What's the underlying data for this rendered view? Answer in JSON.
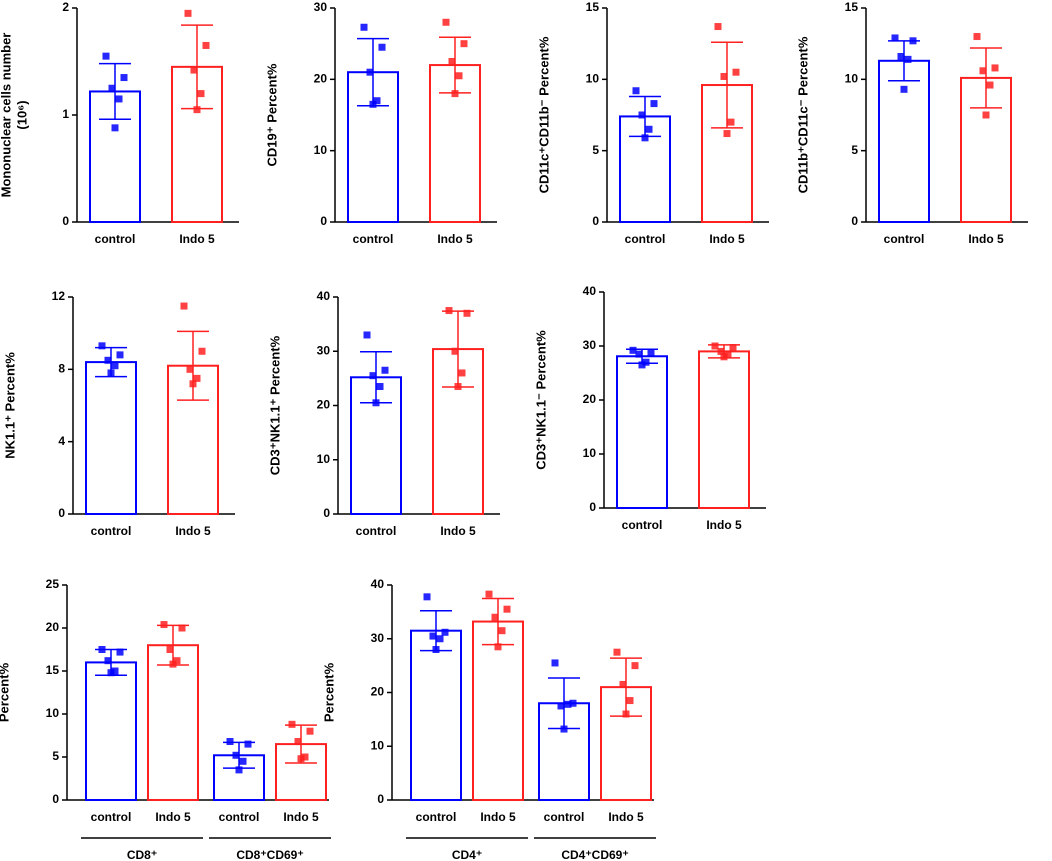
{
  "chart_data": [
    {
      "type": "bar",
      "ylabel": [
        "Mononuclear cells number",
        "(10⁶)"
      ],
      "categories": [
        "control",
        "Indo 5"
      ],
      "colors": [
        "#0000ff",
        "#ff2020"
      ],
      "values": [
        1.22,
        1.45
      ],
      "errors": [
        0.26,
        0.39
      ],
      "points": [
        [
          1.55,
          1.35,
          1.25,
          1.15,
          0.88
        ],
        [
          1.95,
          1.65,
          1.42,
          1.2,
          1.05
        ]
      ],
      "ylim": [
        0,
        2
      ],
      "yticks": [
        0,
        1,
        2
      ]
    },
    {
      "type": "bar",
      "ylabel": "CD19⁺ Percent%",
      "categories": [
        "control",
        "Indo 5"
      ],
      "colors": [
        "#0000ff",
        "#ff2020"
      ],
      "values": [
        21,
        22
      ],
      "errors": [
        4.7,
        3.9
      ],
      "points": [
        [
          27.3,
          24.5,
          21,
          17,
          16.5
        ],
        [
          28,
          25,
          22.5,
          20.5,
          18
        ]
      ],
      "ylim": [
        0,
        30
      ],
      "yticks": [
        0,
        10,
        20,
        30
      ]
    },
    {
      "type": "bar",
      "ylabel": "CD11c⁺CD11b⁻ Percent%",
      "categories": [
        "control",
        "Indo 5"
      ],
      "colors": [
        "#0000ff",
        "#ff2020"
      ],
      "values": [
        7.4,
        9.6
      ],
      "errors": [
        1.4,
        3
      ],
      "points": [
        [
          9.2,
          8.3,
          7.5,
          6.5,
          5.9
        ],
        [
          13.7,
          10.5,
          10.2,
          7,
          6.2
        ]
      ],
      "ylim": [
        0,
        15
      ],
      "yticks": [
        0,
        5,
        10,
        15
      ]
    },
    {
      "type": "bar",
      "ylabel": "CD11b⁺CD11c⁻ Percent%",
      "categories": [
        "control",
        "Indo 5"
      ],
      "colors": [
        "#0000ff",
        "#ff2020"
      ],
      "values": [
        11.3,
        10.1
      ],
      "errors": [
        1.4,
        2.1
      ],
      "points": [
        [
          12.9,
          12.7,
          11.6,
          11.4,
          9.3
        ],
        [
          13,
          10.8,
          10.6,
          9.6,
          7.5
        ]
      ],
      "ylim": [
        0,
        15
      ],
      "yticks": [
        0,
        5,
        10,
        15
      ]
    },
    {
      "type": "bar",
      "ylabel": "NK1.1⁺ Percent%",
      "categories": [
        "control",
        "Indo 5"
      ],
      "colors": [
        "#0000ff",
        "#ff2020"
      ],
      "values": [
        8.4,
        8.2
      ],
      "errors": [
        0.8,
        1.9
      ],
      "points": [
        [
          9.3,
          8.8,
          8.5,
          8.2,
          7.8
        ],
        [
          11.5,
          9,
          8,
          7.5,
          7.2
        ]
      ],
      "ylim": [
        0,
        12
      ],
      "yticks": [
        0,
        4,
        8,
        12
      ]
    },
    {
      "type": "bar",
      "ylabel": "CD3⁺NK1.1⁺ Percent%",
      "categories": [
        "control",
        "Indo 5"
      ],
      "colors": [
        "#0000ff",
        "#ff2020"
      ],
      "values": [
        25.2,
        30.4
      ],
      "errors": [
        4.7,
        7
      ],
      "points": [
        [
          33,
          26.5,
          25.5,
          23.5,
          20.5
        ],
        [
          37.5,
          37,
          30,
          26,
          23.5
        ]
      ],
      "ylim": [
        0,
        40
      ],
      "yticks": [
        0,
        10,
        20,
        30,
        40
      ]
    },
    {
      "type": "bar",
      "ylabel": "CD3⁺NK1.1⁻ Percent%",
      "categories": [
        "control",
        "Indo 5"
      ],
      "colors": [
        "#0000ff",
        "#ff2020"
      ],
      "values": [
        28.1,
        29
      ],
      "errors": [
        1.3,
        1.2
      ],
      "points": [
        [
          29.2,
          28.8,
          28.5,
          27,
          26.5
        ],
        [
          30,
          29.7,
          29,
          28.5,
          28
        ]
      ],
      "ylim": [
        0,
        40
      ],
      "yticks": [
        0,
        10,
        20,
        30,
        40
      ]
    },
    {
      "type": "bar",
      "ylabel": "Percent%",
      "categories": [
        "control",
        "Indo 5",
        "control",
        "Indo 5"
      ],
      "groups": [
        "CD8⁺",
        "CD8⁺CD69⁺"
      ],
      "colors": [
        "#0000ff",
        "#ff2020",
        "#0000ff",
        "#ff2020"
      ],
      "values": [
        16,
        18,
        5.2,
        6.5
      ],
      "errors": [
        1.5,
        2.3,
        1.5,
        2.2
      ],
      "points": [
        [
          17.5,
          17.2,
          16.2,
          15,
          14.8
        ],
        [
          20.4,
          20,
          17.5,
          16.2,
          15.8
        ],
        [
          6.8,
          6.5,
          5.2,
          4.5,
          3.5
        ],
        [
          8.8,
          8,
          6.8,
          5,
          4.8
        ]
      ],
      "ylim": [
        0,
        25
      ],
      "yticks": [
        0,
        5,
        10,
        15,
        20,
        25
      ]
    },
    {
      "type": "bar",
      "ylabel": "Percent%",
      "categories": [
        "control",
        "Indo 5",
        "control",
        "Indo 5"
      ],
      "groups": [
        "CD4⁺",
        "CD4⁺CD69⁺"
      ],
      "colors": [
        "#0000ff",
        "#ff2020",
        "#0000ff",
        "#ff2020"
      ],
      "values": [
        31.5,
        33.2,
        18,
        21
      ],
      "errors": [
        3.7,
        4.3,
        4.7,
        5.4
      ],
      "points": [
        [
          37.8,
          31.2,
          30.5,
          30,
          28
        ],
        [
          38.3,
          35.5,
          34,
          31.5,
          28.5
        ],
        [
          25.5,
          18,
          17.5,
          17.8,
          13.2
        ],
        [
          27.5,
          25,
          21.5,
          18.5,
          16
        ]
      ],
      "ylim": [
        0,
        40
      ],
      "yticks": [
        0,
        10,
        20,
        30,
        40
      ]
    }
  ]
}
